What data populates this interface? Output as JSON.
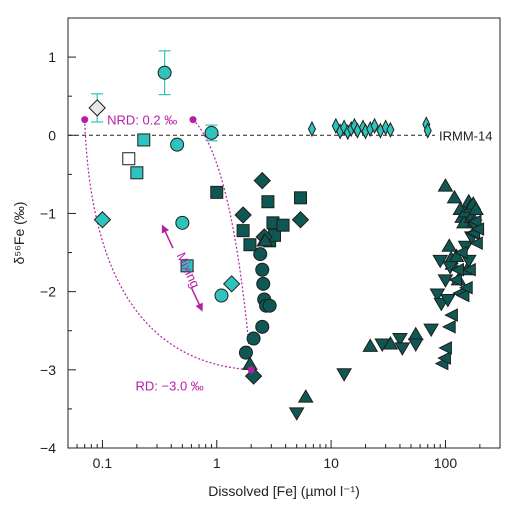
{
  "colors": {
    "light": "#2ec4bd",
    "dark": "#0f5752",
    "magenta": "#b51fa8",
    "open": "#ffffff",
    "open_gray": "#e8e8e8",
    "axis": "#222222"
  },
  "chart_data": {
    "type": "scatter",
    "title": "",
    "xlabel": "Dissolved [Fe] (µmol l⁻¹)",
    "ylabel": "δ⁵⁶Fe (‰)",
    "x_scale": "log",
    "xlim": [
      0.05,
      300
    ],
    "ylim": [
      -4,
      1.5
    ],
    "x_ticks": [
      0.1,
      1,
      10,
      100
    ],
    "x_tick_labels": [
      "0.1",
      "1",
      "10",
      "100"
    ],
    "y_ticks": [
      1,
      0,
      -1,
      -2,
      -3,
      -4
    ],
    "y_tick_labels": [
      "1",
      "0",
      "−1",
      "−2",
      "−3",
      "−4"
    ],
    "grid": false,
    "reference_line": {
      "y": 0,
      "label": "IRMM-14",
      "style": "dashed"
    },
    "annotations": [
      {
        "text": "NRD: 0.2 ‰",
        "x": 0.11,
        "y": 0.2
      },
      {
        "text": "RD: −3.0 ‰",
        "x": 0.9,
        "y": -3.1
      },
      {
        "text": "Mixing",
        "x": 0.52,
        "y": -1.75,
        "rotation": -65
      }
    ],
    "endmembers": [
      {
        "label": "NRD",
        "x": 0.07,
        "y": 0.2
      },
      {
        "label": "NRD",
        "x": 0.62,
        "y": 0.2
      },
      {
        "label": "RD",
        "x": 2.0,
        "y": -3.0
      }
    ],
    "mixing_curves": [
      {
        "from": [
          0.07,
          0.2
        ],
        "to": [
          2.0,
          -3.0
        ]
      },
      {
        "from": [
          0.62,
          0.2
        ],
        "to": [
          2.0,
          -3.0
        ]
      }
    ],
    "series": [
      {
        "marker": "circle",
        "fill": "light",
        "points": [
          [
            0.35,
            0.8
          ],
          [
            0.45,
            -0.12
          ],
          [
            0.5,
            -1.12
          ],
          [
            0.9,
            0.03
          ],
          [
            1.1,
            -2.05
          ]
        ]
      },
      {
        "marker": "circle",
        "fill": "dark",
        "points": [
          [
            2.4,
            -1.52
          ],
          [
            2.5,
            -1.72
          ],
          [
            2.55,
            -1.9
          ],
          [
            2.6,
            -2.1
          ],
          [
            2.7,
            -2.18
          ],
          [
            2.9,
            -2.18
          ],
          [
            2.5,
            -2.45
          ],
          [
            2.1,
            -2.6
          ],
          [
            1.8,
            -2.78
          ]
        ]
      },
      {
        "marker": "square",
        "fill": "light",
        "points": [
          [
            0.2,
            -0.48
          ],
          [
            0.23,
            -0.06
          ],
          [
            0.55,
            -1.67
          ]
        ]
      },
      {
        "marker": "square",
        "fill": "open",
        "points": [
          [
            0.17,
            -0.3
          ]
        ]
      },
      {
        "marker": "square",
        "fill": "dark",
        "points": [
          [
            1.0,
            -0.73
          ],
          [
            1.7,
            -1.22
          ],
          [
            1.95,
            -1.4
          ],
          [
            2.8,
            -0.85
          ],
          [
            2.9,
            -1.35
          ],
          [
            3.1,
            -1.12
          ],
          [
            3.2,
            -1.28
          ],
          [
            3.8,
            -1.15
          ],
          [
            5.4,
            -0.8
          ]
        ]
      },
      {
        "marker": "diamond",
        "fill": "light",
        "points": [
          [
            0.1,
            -1.08
          ],
          [
            1.35,
            -1.9
          ]
        ]
      },
      {
        "marker": "diamond",
        "fill": "open_gray",
        "points": [
          [
            0.09,
            0.35
          ]
        ]
      },
      {
        "marker": "diamond",
        "fill": "dark",
        "points": [
          [
            2.5,
            -0.58
          ],
          [
            1.7,
            -1.02
          ],
          [
            2.6,
            -1.3
          ],
          [
            5.4,
            -1.08
          ],
          [
            2.1,
            -3.08
          ]
        ]
      },
      {
        "marker": "thin-diamond",
        "fill": "light",
        "points": [
          [
            6.8,
            0.08
          ],
          [
            11,
            0.12
          ],
          [
            12,
            0.05
          ],
          [
            13,
            0.1
          ],
          [
            14,
            0.04
          ],
          [
            15,
            0.08
          ],
          [
            16,
            0.12
          ],
          [
            17,
            0.06
          ],
          [
            19,
            0.1
          ],
          [
            20,
            0.05
          ],
          [
            22,
            0.08
          ],
          [
            24,
            0.12
          ],
          [
            27,
            0.06
          ],
          [
            30,
            0.1
          ],
          [
            33,
            0.07
          ],
          [
            68,
            0.14
          ],
          [
            70,
            0.06
          ]
        ]
      },
      {
        "marker": "triangle-up",
        "fill": "dark",
        "points": [
          [
            1.95,
            -2.93
          ],
          [
            2.6,
            -1.35
          ],
          [
            2.65,
            -1.35
          ],
          [
            22,
            -2.7
          ],
          [
            33,
            -2.67
          ],
          [
            55,
            -2.55
          ],
          [
            100,
            -0.65
          ],
          [
            108,
            -1.42
          ],
          [
            112,
            -1.58
          ],
          [
            115,
            -1.65
          ],
          [
            120,
            -0.8
          ],
          [
            125,
            -1.55
          ],
          [
            130,
            -1.85
          ],
          [
            135,
            -0.95
          ],
          [
            140,
            -1.05
          ],
          [
            145,
            -1.12
          ],
          [
            150,
            -0.98
          ],
          [
            155,
            -1.72
          ],
          [
            160,
            -0.85
          ],
          [
            165,
            -0.92
          ],
          [
            170,
            -1.05
          ],
          [
            175,
            -0.88
          ],
          [
            180,
            -1.1
          ],
          [
            185,
            -0.95
          ],
          [
            6,
            -3.35
          ]
        ]
      },
      {
        "marker": "triangle-down",
        "fill": "dark",
        "points": [
          [
            5,
            -3.55
          ],
          [
            13,
            -3.05
          ],
          [
            28,
            -2.67
          ],
          [
            40,
            -2.6
          ],
          [
            42,
            -2.72
          ],
          [
            55,
            -2.67
          ],
          [
            75,
            -2.48
          ],
          [
            85,
            -2.03
          ],
          [
            90,
            -1.6
          ],
          [
            92,
            -2.15
          ],
          [
            100,
            -1.85
          ],
          [
            105,
            -2.1
          ],
          [
            110,
            -1.68
          ],
          [
            150,
            -1.42
          ],
          [
            160,
            -1.6
          ],
          [
            170,
            -1.3
          ],
          [
            180,
            -1.15
          ]
        ]
      },
      {
        "marker": "triangle-left",
        "fill": "dark",
        "points": [
          [
            95,
            -2.92
          ],
          [
            100,
            -2.85
          ],
          [
            102,
            -2.72
          ],
          [
            110,
            -2.45
          ],
          [
            115,
            -2.3
          ],
          [
            125,
            -1.85
          ],
          [
            130,
            -1.72
          ],
          [
            135,
            -2.02
          ],
          [
            140,
            -1.5
          ],
          [
            145,
            -2.05
          ],
          [
            155,
            -1.95
          ],
          [
            165,
            -1.72
          ],
          [
            175,
            -1.25
          ],
          [
            180,
            -1.25
          ],
          [
            185,
            -1.1
          ],
          [
            190,
            -1.38
          ],
          [
            195,
            -1.2
          ]
        ]
      }
    ]
  }
}
